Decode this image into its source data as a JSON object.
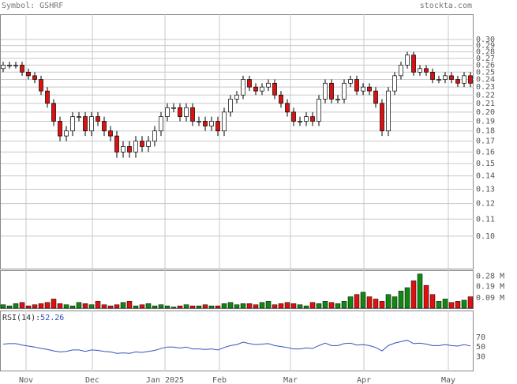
{
  "header": {
    "symbol": "Symbol: GSHRF",
    "site": "stockta.com"
  },
  "chart_data": [
    {
      "type": "candlestick",
      "log_scale": true,
      "grid": true,
      "up_color": "#ffffff",
      "down_color": "#dd1111",
      "months": [
        "Nov",
        "Dec",
        "Jan 2025",
        "Feb",
        "Mar",
        "Apr",
        "May"
      ],
      "ylim": [
        0.0834,
        0.3455
      ],
      "yticks": [
        {
          "value": 0.1,
          "label": "0.10"
        },
        {
          "value": 0.11,
          "label": "0.11"
        },
        {
          "value": 0.12,
          "label": "0.12"
        },
        {
          "value": 0.13,
          "label": "0.13"
        },
        {
          "value": 0.14,
          "label": "0.14"
        },
        {
          "value": 0.15,
          "label": "0.15"
        },
        {
          "value": 0.16,
          "label": "0.16"
        },
        {
          "value": 0.17,
          "label": "0.17"
        },
        {
          "value": 0.18,
          "label": "0.18"
        },
        {
          "value": 0.19,
          "label": "0.19"
        },
        {
          "value": 0.2,
          "label": "0.20"
        },
        {
          "value": 0.21,
          "label": "0.21"
        },
        {
          "value": 0.22,
          "label": "0.22"
        },
        {
          "value": 0.23,
          "label": "0.23"
        },
        {
          "value": 0.24,
          "label": "0.24"
        },
        {
          "value": 0.25,
          "label": "0.25"
        },
        {
          "value": 0.26,
          "label": "0.26"
        },
        {
          "value": 0.27,
          "label": "0.27"
        },
        {
          "value": 0.28,
          "label": "0.28"
        },
        {
          "value": 0.29,
          "label": "0.29"
        },
        {
          "value": 0.3,
          "label": "0.30"
        }
      ],
      "open": [
        0.255,
        0.26,
        0.26,
        0.26,
        0.25,
        0.245,
        0.24,
        0.225,
        0.21,
        0.19,
        0.175,
        0.18,
        0.195,
        0.195,
        0.18,
        0.195,
        0.19,
        0.18,
        0.175,
        0.16,
        0.165,
        0.16,
        0.17,
        0.165,
        0.17,
        0.18,
        0.195,
        0.205,
        0.205,
        0.195,
        0.205,
        0.19,
        0.19,
        0.185,
        0.19,
        0.18,
        0.2,
        0.215,
        0.22,
        0.24,
        0.23,
        0.225,
        0.23,
        0.235,
        0.22,
        0.21,
        0.2,
        0.19,
        0.19,
        0.195,
        0.19,
        0.215,
        0.235,
        0.215,
        0.215,
        0.235,
        0.24,
        0.225,
        0.23,
        0.225,
        0.21,
        0.18,
        0.225,
        0.245,
        0.26,
        0.275,
        0.25,
        0.255,
        0.25,
        0.24,
        0.24,
        0.245,
        0.24,
        0.235,
        0.245
      ],
      "high": [
        0.265,
        0.265,
        0.265,
        0.265,
        0.255,
        0.25,
        0.245,
        0.23,
        0.215,
        0.195,
        0.185,
        0.2,
        0.2,
        0.2,
        0.2,
        0.2,
        0.195,
        0.185,
        0.18,
        0.17,
        0.17,
        0.175,
        0.175,
        0.175,
        0.185,
        0.2,
        0.21,
        0.21,
        0.21,
        0.21,
        0.21,
        0.195,
        0.195,
        0.195,
        0.195,
        0.205,
        0.22,
        0.225,
        0.245,
        0.245,
        0.235,
        0.235,
        0.24,
        0.24,
        0.225,
        0.215,
        0.205,
        0.195,
        0.2,
        0.2,
        0.22,
        0.24,
        0.24,
        0.22,
        0.24,
        0.245,
        0.245,
        0.235,
        0.235,
        0.23,
        0.215,
        0.23,
        0.25,
        0.265,
        0.28,
        0.28,
        0.26,
        0.26,
        0.255,
        0.245,
        0.25,
        0.25,
        0.245,
        0.25,
        0.25
      ],
      "low": [
        0.25,
        0.255,
        0.255,
        0.245,
        0.24,
        0.235,
        0.22,
        0.205,
        0.185,
        0.17,
        0.17,
        0.175,
        0.19,
        0.175,
        0.175,
        0.185,
        0.175,
        0.17,
        0.155,
        0.155,
        0.155,
        0.155,
        0.16,
        0.16,
        0.165,
        0.175,
        0.19,
        0.2,
        0.19,
        0.19,
        0.185,
        0.185,
        0.18,
        0.18,
        0.175,
        0.175,
        0.195,
        0.21,
        0.215,
        0.225,
        0.22,
        0.22,
        0.225,
        0.215,
        0.205,
        0.195,
        0.185,
        0.185,
        0.185,
        0.185,
        0.185,
        0.21,
        0.21,
        0.21,
        0.21,
        0.23,
        0.22,
        0.22,
        0.22,
        0.205,
        0.175,
        0.175,
        0.22,
        0.24,
        0.255,
        0.245,
        0.245,
        0.245,
        0.235,
        0.235,
        0.235,
        0.235,
        0.23,
        0.23,
        0.23
      ],
      "close": [
        0.26,
        0.26,
        0.26,
        0.25,
        0.245,
        0.24,
        0.225,
        0.21,
        0.19,
        0.175,
        0.18,
        0.195,
        0.195,
        0.18,
        0.195,
        0.19,
        0.18,
        0.175,
        0.16,
        0.165,
        0.16,
        0.17,
        0.165,
        0.17,
        0.18,
        0.195,
        0.205,
        0.205,
        0.195,
        0.205,
        0.19,
        0.19,
        0.185,
        0.19,
        0.18,
        0.2,
        0.215,
        0.22,
        0.24,
        0.23,
        0.225,
        0.23,
        0.235,
        0.22,
        0.21,
        0.2,
        0.19,
        0.19,
        0.195,
        0.19,
        0.215,
        0.235,
        0.215,
        0.215,
        0.235,
        0.24,
        0.225,
        0.23,
        0.225,
        0.21,
        0.18,
        0.225,
        0.245,
        0.26,
        0.275,
        0.25,
        0.255,
        0.25,
        0.24,
        0.24,
        0.245,
        0.24,
        0.235,
        0.245,
        0.235
      ]
    },
    {
      "type": "volume",
      "up_color": "#118811",
      "down_color": "#dd1111",
      "ylim": [
        0,
        0.333
      ],
      "yticks": [
        {
          "value": 0.09,
          "label": "0.09 M"
        },
        {
          "value": 0.19,
          "label": "0.19 M"
        },
        {
          "value": 0.28,
          "label": "0.28 M"
        }
      ],
      "values": [
        0.03,
        0.02,
        0.04,
        0.05,
        0.02,
        0.03,
        0.04,
        0.05,
        0.08,
        0.04,
        0.03,
        0.02,
        0.05,
        0.04,
        0.03,
        0.06,
        0.03,
        0.02,
        0.03,
        0.05,
        0.06,
        0.02,
        0.03,
        0.04,
        0.02,
        0.03,
        0.02,
        0.01,
        0.02,
        0.03,
        0.02,
        0.02,
        0.03,
        0.02,
        0.02,
        0.04,
        0.05,
        0.03,
        0.04,
        0.04,
        0.03,
        0.05,
        0.06,
        0.03,
        0.04,
        0.05,
        0.04,
        0.03,
        0.02,
        0.05,
        0.04,
        0.06,
        0.05,
        0.04,
        0.06,
        0.1,
        0.12,
        0.14,
        0.1,
        0.08,
        0.06,
        0.12,
        0.1,
        0.15,
        0.18,
        0.24,
        0.3,
        0.2,
        0.12,
        0.06,
        0.08,
        0.05,
        0.06,
        0.07,
        0.1
      ]
    },
    {
      "type": "line",
      "label": "RSI(14):",
      "color": "#3355bb",
      "ylim": [
        0,
        125
      ],
      "yticks": [
        30,
        50,
        70
      ],
      "values": [
        56,
        57,
        57,
        54,
        52,
        50,
        47,
        45,
        42,
        40,
        41,
        44,
        44,
        41,
        44,
        43,
        41,
        40,
        37,
        38,
        37,
        40,
        39,
        41,
        43,
        47,
        50,
        50,
        48,
        50,
        46,
        46,
        45,
        46,
        44,
        49,
        53,
        55,
        60,
        57,
        55,
        56,
        57,
        53,
        51,
        49,
        46,
        46,
        48,
        47,
        53,
        58,
        53,
        53,
        57,
        58,
        54,
        55,
        53,
        49,
        42,
        53,
        58,
        61,
        64,
        57,
        58,
        56,
        53,
        53,
        55,
        53,
        52,
        55,
        52.26
      ]
    }
  ]
}
